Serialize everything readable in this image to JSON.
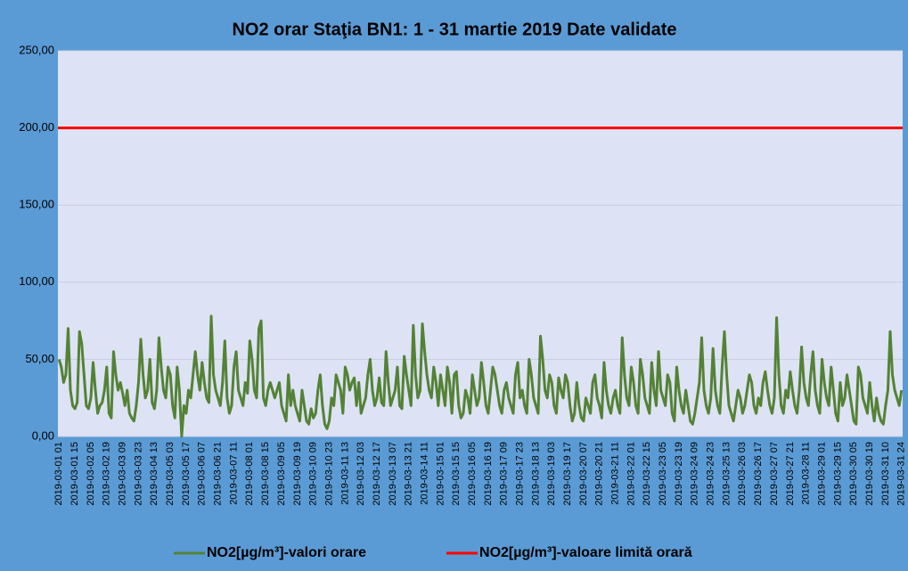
{
  "chart_data": {
    "type": "line",
    "title": "NO2 orar Staţia BN1: 1 - 31 martie 2019 Date validate",
    "categories": [
      "2019-03-01 01",
      null,
      null,
      null,
      null,
      null,
      null,
      "2019-03-01 15",
      null,
      null,
      null,
      null,
      null,
      null,
      "2019-03-02 05",
      null,
      null,
      null,
      null,
      null,
      null,
      "2019-03-02 19",
      null,
      null,
      null,
      null,
      null,
      null,
      "2019-03-03 09",
      null,
      null,
      null,
      null,
      null,
      null,
      "2019-03-03 23",
      null,
      null,
      null,
      null,
      null,
      null,
      "2019-03-04 13",
      null,
      null,
      null,
      null,
      null,
      null,
      "2019-03-05 03",
      null,
      null,
      null,
      null,
      null,
      null,
      "2019-03-05 17",
      null,
      null,
      null,
      null,
      null,
      null,
      "2019-03-06 07",
      null,
      null,
      null,
      null,
      null,
      null,
      "2019-03-06 21",
      null,
      null,
      null,
      null,
      null,
      null,
      "2019-03-07 11",
      null,
      null,
      null,
      null,
      null,
      null,
      "2019-03-08 01",
      null,
      null,
      null,
      null,
      null,
      null,
      "2019-03-08 15",
      null,
      null,
      null,
      null,
      null,
      null,
      "2019-03-09 05",
      null,
      null,
      null,
      null,
      null,
      null,
      "2019-03-09 19",
      null,
      null,
      null,
      null,
      null,
      null,
      "2019-03-10 09",
      null,
      null,
      null,
      null,
      null,
      null,
      "2019-03-10 23",
      null,
      null,
      null,
      null,
      null,
      null,
      "2019-03-11 13",
      null,
      null,
      null,
      null,
      null,
      null,
      "2019-03-12 03",
      null,
      null,
      null,
      null,
      null,
      null,
      "2019-03-12 17",
      null,
      null,
      null,
      null,
      null,
      null,
      "2019-03-13 07",
      null,
      null,
      null,
      null,
      null,
      null,
      "2019-03-13 21",
      null,
      null,
      null,
      null,
      null,
      null,
      "2019-03-14 11",
      null,
      null,
      null,
      null,
      null,
      null,
      "2019-03-15 01",
      null,
      null,
      null,
      null,
      null,
      null,
      "2019-03-15 15",
      null,
      null,
      null,
      null,
      null,
      null,
      "2019-03-16 05",
      null,
      null,
      null,
      null,
      null,
      null,
      "2019-03-16 19",
      null,
      null,
      null,
      null,
      null,
      null,
      "2019-03-17 09",
      null,
      null,
      null,
      null,
      null,
      null,
      "2019-03-17 23",
      null,
      null,
      null,
      null,
      null,
      null,
      "2019-03-18 13",
      null,
      null,
      null,
      null,
      null,
      null,
      "2019-03-19 03",
      null,
      null,
      null,
      null,
      null,
      null,
      "2019-03-19 17",
      null,
      null,
      null,
      null,
      null,
      null,
      "2019-03-20 07",
      null,
      null,
      null,
      null,
      null,
      null,
      "2019-03-20 21",
      null,
      null,
      null,
      null,
      null,
      null,
      "2019-03-21 11",
      null,
      null,
      null,
      null,
      null,
      null,
      "2019-03-22 01",
      null,
      null,
      null,
      null,
      null,
      null,
      "2019-03-22 15",
      null,
      null,
      null,
      null,
      null,
      null,
      "2019-03-23 05",
      null,
      null,
      null,
      null,
      null,
      null,
      "2019-03-23 19",
      null,
      null,
      null,
      null,
      null,
      null,
      "2019-03-24 09",
      null,
      null,
      null,
      null,
      null,
      null,
      "2019-03-24 23",
      null,
      null,
      null,
      null,
      null,
      null,
      "2019-03-25 13",
      null,
      null,
      null,
      null,
      null,
      null,
      "2019-03-26 03",
      null,
      null,
      null,
      null,
      null,
      null,
      "2019-03-26 17",
      null,
      null,
      null,
      null,
      null,
      null,
      "2019-03-27 07",
      null,
      null,
      null,
      null,
      null,
      null,
      "2019-03-27 21",
      null,
      null,
      null,
      null,
      null,
      null,
      "2019-03-28 11",
      null,
      null,
      null,
      null,
      null,
      null,
      "2019-03-29 01",
      null,
      null,
      null,
      null,
      null,
      null,
      "2019-03-29 15",
      null,
      null,
      null,
      null,
      null,
      null,
      "2019-03-30 05",
      null,
      null,
      null,
      null,
      null,
      null,
      "2019-03-30 19",
      null,
      null,
      null,
      null,
      null,
      null,
      "2019-03-31 10",
      null,
      null,
      null,
      null,
      null,
      null,
      "2019-03-31 24"
    ],
    "series": [
      {
        "name": "NO2[µg/m³]-valori orare",
        "color": "#548235",
        "values": [
          50,
          45,
          35,
          40,
          70,
          30,
          20,
          18,
          22,
          68,
          60,
          40,
          20,
          18,
          25,
          48,
          30,
          15,
          20,
          22,
          30,
          45,
          15,
          12,
          55,
          40,
          30,
          35,
          28,
          20,
          30,
          15,
          12,
          10,
          20,
          35,
          63,
          40,
          25,
          30,
          50,
          22,
          18,
          30,
          64,
          45,
          30,
          25,
          45,
          40,
          20,
          12,
          45,
          30,
          0,
          20,
          15,
          30,
          25,
          40,
          55,
          40,
          30,
          48,
          35,
          25,
          22,
          78,
          40,
          30,
          25,
          20,
          35,
          62,
          25,
          15,
          20,
          45,
          55,
          30,
          25,
          20,
          35,
          28,
          62,
          50,
          30,
          25,
          70,
          75,
          25,
          20,
          30,
          35,
          30,
          25,
          30,
          35,
          20,
          15,
          10,
          40,
          20,
          30,
          20,
          15,
          10,
          30,
          20,
          10,
          8,
          18,
          12,
          15,
          30,
          40,
          20,
          8,
          5,
          10,
          25,
          20,
          40,
          35,
          30,
          15,
          45,
          40,
          30,
          35,
          38,
          20,
          35,
          15,
          20,
          25,
          40,
          50,
          30,
          20,
          25,
          38,
          22,
          20,
          55,
          35,
          20,
          25,
          30,
          45,
          20,
          18,
          52,
          40,
          30,
          20,
          72,
          40,
          25,
          30,
          73,
          55,
          40,
          30,
          25,
          45,
          35,
          20,
          40,
          30,
          20,
          45,
          35,
          15,
          40,
          42,
          20,
          12,
          15,
          30,
          25,
          15,
          40,
          30,
          20,
          25,
          48,
          35,
          20,
          15,
          30,
          45,
          40,
          30,
          20,
          15,
          30,
          35,
          25,
          20,
          15,
          40,
          48,
          25,
          30,
          20,
          15,
          50,
          40,
          25,
          20,
          15,
          65,
          50,
          30,
          25,
          40,
          35,
          20,
          15,
          38,
          30,
          25,
          40,
          35,
          20,
          10,
          15,
          35,
          20,
          12,
          10,
          25,
          20,
          15,
          35,
          40,
          25,
          20,
          12,
          48,
          30,
          20,
          15,
          25,
          30,
          20,
          15,
          64,
          40,
          25,
          20,
          45,
          35,
          20,
          15,
          50,
          40,
          25,
          20,
          15,
          48,
          30,
          20,
          55,
          30,
          25,
          20,
          40,
          35,
          15,
          10,
          45,
          30,
          20,
          15,
          30,
          20,
          10,
          8,
          15,
          25,
          35,
          64,
          30,
          20,
          15,
          25,
          57,
          30,
          20,
          15,
          45,
          68,
          40,
          20,
          15,
          10,
          20,
          30,
          25,
          15,
          20,
          30,
          40,
          35,
          20,
          15,
          25,
          20,
          35,
          42,
          30,
          20,
          15,
          25,
          77,
          40,
          20,
          15,
          30,
          25,
          42,
          30,
          20,
          15,
          30,
          58,
          35,
          25,
          20,
          40,
          55,
          30,
          20,
          15,
          50,
          35,
          25,
          20,
          45,
          30,
          15,
          10,
          35,
          20,
          25,
          40,
          30,
          20,
          10,
          8,
          45,
          40,
          25,
          20,
          15,
          35,
          20,
          10,
          25,
          15,
          10,
          8,
          20,
          30,
          68,
          40,
          30,
          25,
          20,
          30
        ]
      }
    ],
    "reference_lines": [
      {
        "name": "NO2[µg/m³]-valoare limită orară",
        "value": 200,
        "color": "#ff0000"
      }
    ],
    "ylim": [
      0,
      250
    ],
    "yticks": [
      {
        "value": 0,
        "label": "0,00"
      },
      {
        "value": 50,
        "label": "50,00"
      },
      {
        "value": 100,
        "label": "100,00"
      },
      {
        "value": 150,
        "label": "150,00"
      },
      {
        "value": 200,
        "label": "200,00"
      },
      {
        "value": 250,
        "label": "250,00"
      }
    ],
    "grid": true,
    "legend": "bottom"
  }
}
